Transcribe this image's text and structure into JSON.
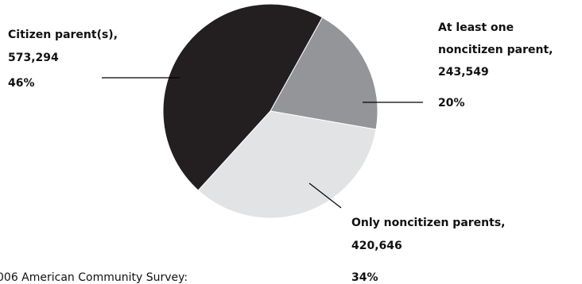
{
  "chart_data": {
    "type": "pie",
    "slices": [
      {
        "name": "Citizen parent(s)",
        "label_lines": [
          "Citizen parent(s),",
          "573,294"
        ],
        "value": 573294,
        "percent_label": "46%",
        "color": "#231f20"
      },
      {
        "name": "At least one noncitizen parent",
        "label_lines": [
          "At least one",
          "noncitizen parent,",
          "243,549"
        ],
        "value": 243549,
        "percent_label": "20%",
        "color": "#939598"
      },
      {
        "name": "Only noncitizen parents",
        "label_lines": [
          "Only noncitizen parents,",
          "420,646"
        ],
        "value": 420646,
        "percent_label": "34%",
        "color": "#e2e3e4"
      }
    ],
    "source_fragment": "006 American Community Survey:"
  }
}
